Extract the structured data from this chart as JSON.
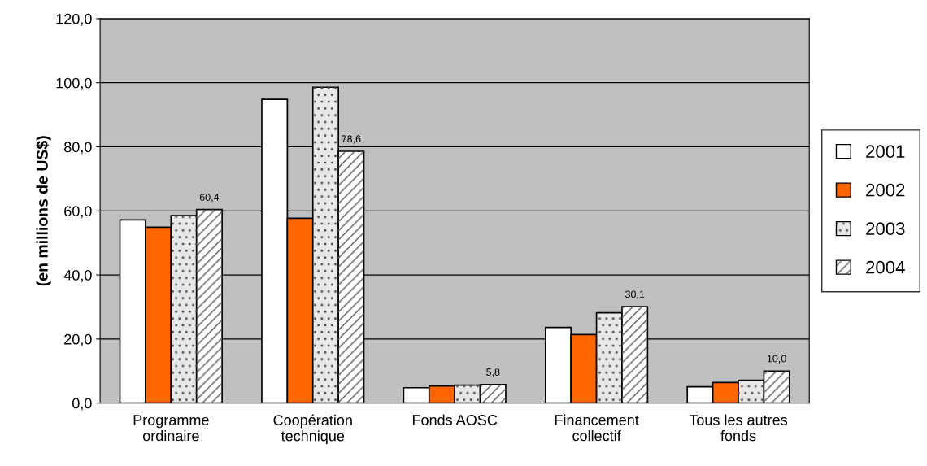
{
  "chart_data": {
    "type": "bar",
    "ylabel": "(en millions de US$)",
    "categories": [
      "Programme\nordinaire",
      "Coopération\ntechnique",
      "Fonds AOSC",
      "Financement\ncollectif",
      "Tous les autres\nfonds"
    ],
    "series": [
      {
        "name": "2001",
        "color": "#ffffff",
        "values": [
          57.2,
          94.8,
          4.8,
          23.6,
          5.1
        ]
      },
      {
        "name": "2002",
        "color": "#ff6600",
        "values": [
          54.9,
          57.7,
          5.3,
          21.4,
          6.4
        ]
      },
      {
        "name": "2003",
        "color": "#e8e8e8",
        "values": [
          58.5,
          98.6,
          5.6,
          28.2,
          7.1
        ]
      },
      {
        "name": "2004",
        "color": "#ffffff",
        "values": [
          60.4,
          78.6,
          5.8,
          30.1,
          10.0
        ],
        "value_labels": [
          "60,4",
          "78,6",
          "5,8",
          "30,1",
          "10,0"
        ]
      }
    ],
    "ylim": [
      0,
      120
    ],
    "yticks": [
      {
        "value": 0,
        "label": "0,0"
      },
      {
        "value": 20,
        "label": "20,0"
      },
      {
        "value": 40,
        "label": "40,0"
      },
      {
        "value": 60,
        "label": "60,0"
      },
      {
        "value": 80,
        "label": "80,0"
      },
      {
        "value": 100,
        "label": "100,0"
      },
      {
        "value": 120,
        "label": "120,0"
      }
    ],
    "grid": "y",
    "legend": "right"
  }
}
